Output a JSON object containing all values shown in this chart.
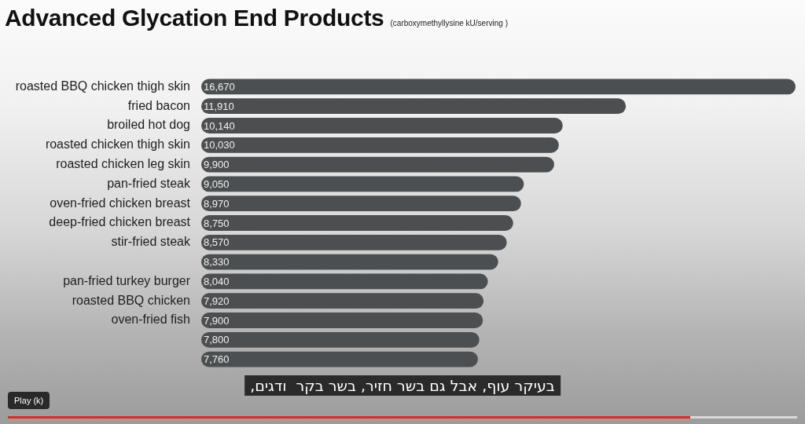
{
  "chart_data": {
    "type": "bar",
    "orientation": "horizontal",
    "title": "Advanced Glycation End Products",
    "subtitle": "(carboxymethyllysine kU/serving )",
    "categories": [
      "roasted BBQ chicken thigh skin",
      "fried bacon",
      "broiled hot dog",
      "roasted chicken thigh skin",
      "roasted chicken leg skin",
      "pan-fried steak",
      "oven-fried chicken breast",
      "deep-fried chicken breast",
      "stir-fried steak",
      null,
      "pan-fried turkey burger",
      "roasted BBQ chicken",
      "oven-fried fish",
      null,
      null
    ],
    "values": [
      16670,
      11910,
      10140,
      10030,
      9900,
      9050,
      8970,
      8750,
      8570,
      8330,
      8040,
      7920,
      7900,
      7800,
      7760
    ],
    "color": "#4b4f51",
    "value_labels": [
      "16,670",
      "11,910",
      "10,140",
      "10,030",
      "9,900",
      "9,050",
      "8,970",
      "8,750",
      "8,570",
      "8,330",
      "8,040",
      "7,920",
      "7,900",
      "7,800",
      "7,760"
    ],
    "annotations": [
      "בעיקר עוף, אבל גם בשר חזיר, בשר בקר  ודגים,",
      "Play (k)"
    ]
  }
}
